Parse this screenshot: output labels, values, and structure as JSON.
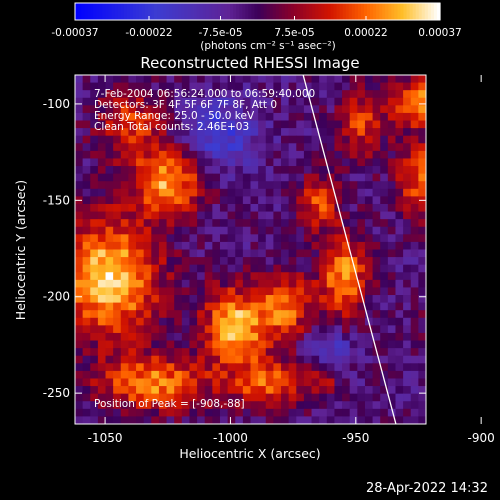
{
  "chart_data": {
    "type": "heatmap",
    "title": "Reconstructed RHESSI Image",
    "xlabel": "Heliocentric X (arcsec)",
    "ylabel": "Heliocentric Y (arcsec)",
    "xlim": [
      -1062,
      -922
    ],
    "ylim": [
      -266,
      -85
    ],
    "xticks": [
      {
        "value": -1050,
        "label": "-1050"
      },
      {
        "value": -1000,
        "label": "-1000"
      },
      {
        "value": -950,
        "label": "-950"
      },
      {
        "value": -900,
        "label": "-900"
      }
    ],
    "yticks": [
      {
        "value": -100,
        "label": "-100"
      },
      {
        "value": -150,
        "label": "-150"
      },
      {
        "value": -200,
        "label": "-200"
      },
      {
        "value": -250,
        "label": "-250"
      }
    ],
    "colorbar": {
      "range": [
        -0.00037,
        0.00037
      ],
      "ticks": [
        {
          "value": -0.00037,
          "label": "-0.00037"
        },
        {
          "value": -0.00022,
          "label": "-0.00022"
        },
        {
          "value": -7.5e-05,
          "label": "-7.5e-05"
        },
        {
          "value": 7.5e-05,
          "label": "7.5e-05"
        },
        {
          "value": 0.00022,
          "label": "0.00022"
        },
        {
          "value": 0.00037,
          "label": "0.00037"
        }
      ],
      "unit_label": "(photons cm⁻² s⁻¹ asec⁻²)"
    },
    "annotations": [
      "7-Feb-2004 06:56:24.000 to 06:59:40.000",
      "Detectors: 3F 4F 5F 6F 7F 8F, Att 0",
      "Energy Range: 25.0 - 50.0 keV",
      "Clean    Total counts: 2.46E+03"
    ],
    "peak_label": "Position of Peak = [-908,-88]",
    "limb_points": [
      [
        -971,
        -85
      ],
      [
        -934,
        -266
      ]
    ],
    "hot_regions": [
      {
        "x": -1048,
        "y": -190,
        "sx": 14,
        "sy": 22,
        "amp": 1.0
      },
      {
        "x": -1025,
        "y": -140,
        "sx": 10,
        "sy": 12,
        "amp": 0.85
      },
      {
        "x": -1040,
        "y": -110,
        "sx": 10,
        "sy": 12,
        "amp": 0.55
      },
      {
        "x": -1030,
        "y": -245,
        "sx": 16,
        "sy": 10,
        "amp": 0.75
      },
      {
        "x": -998,
        "y": -215,
        "sx": 9,
        "sy": 14,
        "amp": 0.95
      },
      {
        "x": -978,
        "y": -205,
        "sx": 7,
        "sy": 12,
        "amp": 0.7
      },
      {
        "x": -985,
        "y": -245,
        "sx": 10,
        "sy": 9,
        "amp": 0.65
      },
      {
        "x": -955,
        "y": -190,
        "sx": 7,
        "sy": 16,
        "amp": 0.8
      },
      {
        "x": -965,
        "y": -150,
        "sx": 6,
        "sy": 10,
        "amp": 0.6
      },
      {
        "x": -948,
        "y": -110,
        "sx": 7,
        "sy": 12,
        "amp": 0.55
      },
      {
        "x": -920,
        "y": -140,
        "sx": 9,
        "sy": 14,
        "amp": 0.8
      },
      {
        "x": -908,
        "y": -93,
        "sx": 9,
        "sy": 9,
        "amp": 1.0
      },
      {
        "x": -928,
        "y": -100,
        "sx": 6,
        "sy": 8,
        "amp": 0.75
      },
      {
        "x": -912,
        "y": -215,
        "sx": 7,
        "sy": 10,
        "amp": 0.55
      },
      {
        "x": -908,
        "y": -240,
        "sx": 7,
        "sy": 9,
        "amp": 0.5
      },
      {
        "x": -962,
        "y": -240,
        "sx": 5,
        "sy": 7,
        "amp": 0.45
      }
    ],
    "cold_regions": [
      {
        "x": -893,
        "y": -245,
        "sx": 9,
        "sy": 12,
        "amp": 0.9
      },
      {
        "x": -900,
        "y": -178,
        "sx": 8,
        "sy": 10,
        "amp": 0.6
      },
      {
        "x": -1005,
        "y": -115,
        "sx": 10,
        "sy": 12,
        "amp": 0.55
      },
      {
        "x": -960,
        "y": -228,
        "sx": 6,
        "sy": 8,
        "amp": 0.5
      }
    ]
  },
  "timestamp": "28-Apr-2022 14:32"
}
